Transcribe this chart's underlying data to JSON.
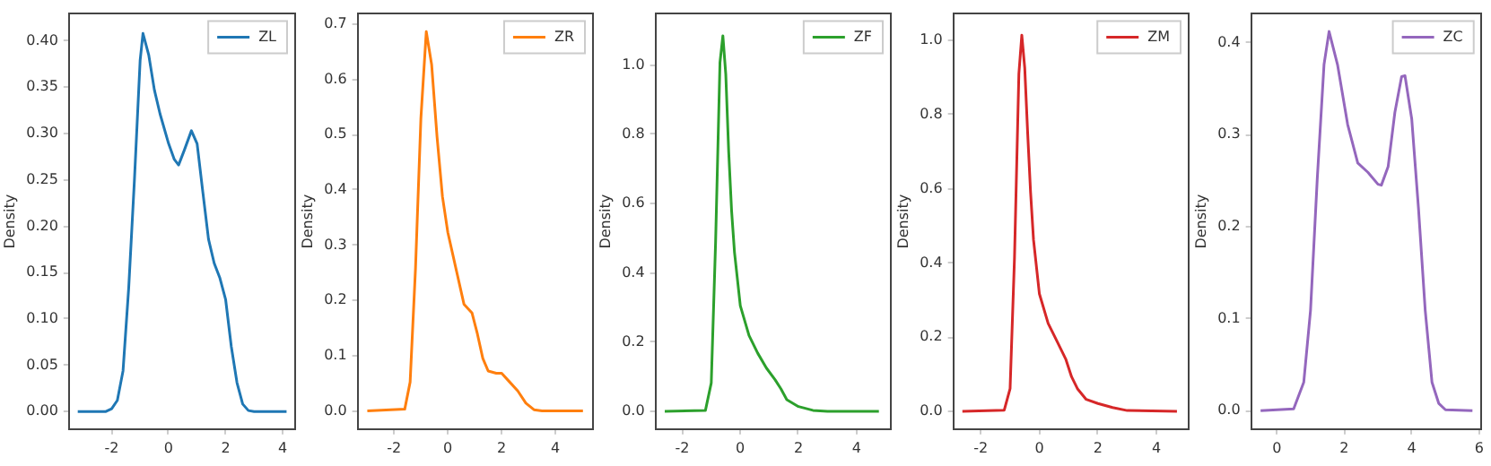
{
  "chart_data": [
    {
      "type": "line",
      "ylabel": "Density",
      "legend": "top right",
      "grid": false,
      "xlim": [
        -3.5,
        4.41
      ],
      "xticks": [
        -2,
        0,
        2,
        4
      ],
      "ylim": [
        -0.019,
        0.429
      ],
      "yticks": [
        {
          "value": 0,
          "label": "0.00"
        },
        {
          "value": 0.05,
          "label": "0.05"
        },
        {
          "value": 0.1,
          "label": "0.10"
        },
        {
          "value": 0.15,
          "label": "0.15"
        },
        {
          "value": 0.2,
          "label": "0.20"
        },
        {
          "value": 0.25,
          "label": "0.25"
        },
        {
          "value": 0.3,
          "label": "0.30"
        },
        {
          "value": 0.35,
          "label": "0.35"
        },
        {
          "value": 0.4,
          "label": "0.40"
        }
      ],
      "series": [
        {
          "name": "ZL",
          "color": "#1f77b4",
          "x": [
            -3.19,
            -2.2,
            -2.0,
            -1.8,
            -1.6,
            -1.4,
            -1.2,
            -1.0,
            -0.9,
            -0.7,
            -0.5,
            -0.3,
            0,
            0.2,
            0.35,
            0.55,
            0.8,
            1.0,
            1.2,
            1.4,
            1.6,
            1.8,
            2.0,
            2.2,
            2.4,
            2.6,
            2.8,
            3.0,
            4.14
          ],
          "values": [
            0,
            0,
            0.003,
            0.012,
            0.044,
            0.134,
            0.25,
            0.379,
            0.408,
            0.385,
            0.347,
            0.321,
            0.289,
            0.272,
            0.266,
            0.282,
            0.303,
            0.289,
            0.237,
            0.186,
            0.16,
            0.144,
            0.121,
            0.07,
            0.031,
            0.008,
            0.001,
            0,
            0
          ]
        }
      ]
    },
    {
      "type": "line",
      "ylabel": "Density",
      "legend": "top right",
      "grid": false,
      "xlim": [
        -3.35,
        5.36
      ],
      "xticks": [
        -2,
        0,
        2,
        4
      ],
      "ylim": [
        -0.033,
        0.718
      ],
      "yticks": [
        {
          "value": 0,
          "label": "0.0"
        },
        0.1,
        0.2,
        0.3,
        0.4,
        0.5,
        0.6,
        0.7
      ],
      "series": [
        {
          "name": "ZR",
          "color": "#ff7f0e",
          "x": [
            -2.99,
            -1.6,
            -1.4,
            -1.2,
            -1.0,
            -0.8,
            -0.6,
            -0.4,
            -0.2,
            0,
            0.3,
            0.6,
            0.9,
            1.1,
            1.3,
            1.5,
            1.8,
            2.0,
            2.3,
            2.6,
            2.9,
            3.2,
            3.5,
            5.02
          ],
          "values": [
            0,
            0.003,
            0.052,
            0.258,
            0.529,
            0.686,
            0.626,
            0.496,
            0.388,
            0.323,
            0.258,
            0.193,
            0.177,
            0.139,
            0.095,
            0.072,
            0.068,
            0.068,
            0.052,
            0.036,
            0.014,
            0.002,
            0,
            0
          ]
        }
      ]
    },
    {
      "type": "line",
      "ylabel": "Density",
      "legend": "top right",
      "grid": false,
      "xlim": [
        -2.92,
        5.15
      ],
      "xticks": [
        -2,
        0,
        2,
        4
      ],
      "ylim": [
        -0.051,
        1.147
      ],
      "yticks": [
        {
          "value": 0,
          "label": "0.0"
        },
        0.2,
        0.4,
        0.6,
        0.8,
        {
          "value": 1,
          "label": "1.0"
        }
      ],
      "series": [
        {
          "name": "ZF",
          "color": "#2ca02c",
          "x": [
            -2.6,
            -1.2,
            -1.0,
            -0.85,
            -0.7,
            -0.6,
            -0.5,
            -0.4,
            -0.3,
            -0.2,
            0,
            0.3,
            0.6,
            0.9,
            1.2,
            1.4,
            1.6,
            2.0,
            2.5,
            3.0,
            4.77
          ],
          "values": [
            0,
            0.003,
            0.082,
            0.49,
            1.007,
            1.084,
            0.973,
            0.75,
            0.579,
            0.459,
            0.305,
            0.219,
            0.168,
            0.125,
            0.091,
            0.065,
            0.034,
            0.014,
            0.003,
            0,
            0
          ]
        }
      ]
    },
    {
      "type": "line",
      "ylabel": "Density",
      "legend": "top right",
      "grid": false,
      "xlim": [
        -2.94,
        5.07
      ],
      "xticks": [
        -2,
        0,
        2,
        4
      ],
      "ylim": [
        -0.048,
        1.071
      ],
      "yticks": [
        {
          "value": 0,
          "label": "0.0"
        },
        0.2,
        0.4,
        0.6,
        0.8,
        {
          "value": 1,
          "label": "1.0"
        }
      ],
      "series": [
        {
          "name": "ZM",
          "color": "#d62728",
          "x": [
            -2.63,
            -1.2,
            -1.0,
            -0.85,
            -0.7,
            -0.6,
            -0.5,
            -0.4,
            -0.3,
            -0.2,
            0,
            0.3,
            0.6,
            0.9,
            1.1,
            1.3,
            1.6,
            2.0,
            2.5,
            3.0,
            4.7
          ],
          "values": [
            0,
            0.003,
            0.061,
            0.413,
            0.91,
            1.014,
            0.926,
            0.75,
            0.59,
            0.462,
            0.317,
            0.237,
            0.189,
            0.141,
            0.093,
            0.061,
            0.032,
            0.021,
            0.01,
            0.002,
            0
          ]
        }
      ]
    },
    {
      "type": "line",
      "ylabel": "Density",
      "legend": "top right",
      "grid": false,
      "xlim": [
        -0.76,
        6.05
      ],
      "xticks": [
        0,
        2,
        4,
        6
      ],
      "ylim": [
        -0.02,
        0.431
      ],
      "yticks": [
        {
          "value": 0,
          "label": "0.0"
        },
        0.1,
        0.2,
        0.3,
        0.4
      ],
      "series": [
        {
          "name": "ZC",
          "color": "#9467bd",
          "x": [
            -0.48,
            0.5,
            0.8,
            1.0,
            1.2,
            1.4,
            1.55,
            1.8,
            2.1,
            2.4,
            2.7,
            3.0,
            3.1,
            3.3,
            3.5,
            3.7,
            3.8,
            4.0,
            4.2,
            4.4,
            4.6,
            4.8,
            5.0,
            5.8
          ],
          "values": [
            0,
            0.002,
            0.031,
            0.109,
            0.252,
            0.376,
            0.412,
            0.376,
            0.311,
            0.269,
            0.259,
            0.246,
            0.245,
            0.265,
            0.324,
            0.363,
            0.364,
            0.317,
            0.22,
            0.109,
            0.031,
            0.008,
            0.001,
            0
          ]
        }
      ]
    }
  ]
}
